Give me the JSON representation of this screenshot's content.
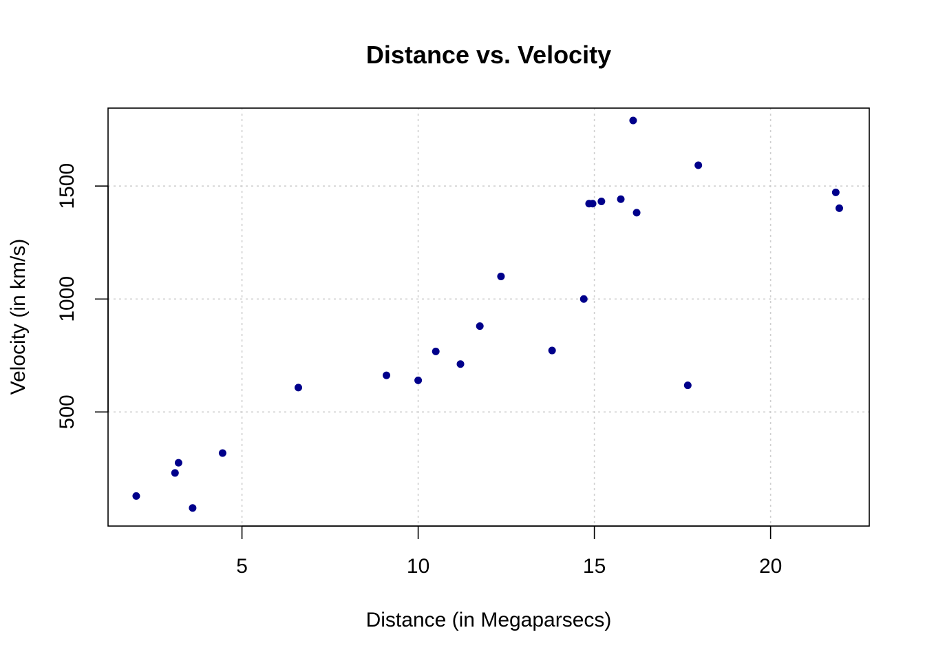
{
  "chart_data": {
    "type": "scatter",
    "title": "Distance vs. Velocity",
    "xlabel": "Distance (in Megaparsecs)",
    "ylabel": "Velocity (in km/s)",
    "xlim": [
      1.2,
      22.8
    ],
    "ylim": [
      -5,
      1845
    ],
    "x_ticks": [
      5,
      10,
      15,
      20
    ],
    "y_ticks": [
      500,
      1000,
      1500
    ],
    "grid": true,
    "point_color": "#00008B",
    "grid_color": "#cfcfcf",
    "series": [
      {
        "x": [
          2.0,
          3.1,
          3.2,
          3.6,
          4.45,
          6.6,
          9.1,
          10.0,
          10.5,
          11.2,
          11.75,
          12.35,
          13.8,
          14.7,
          14.85,
          14.95,
          15.2,
          15.75,
          16.1,
          16.2,
          17.65,
          17.95,
          21.85,
          21.95
        ],
        "y": [
          128,
          230,
          275,
          75,
          318,
          608,
          662,
          640,
          768,
          712,
          880,
          1100,
          772,
          1000,
          1422,
          1422,
          1432,
          1442,
          1790,
          1382,
          618,
          1592,
          1472,
          1402
        ]
      }
    ]
  }
}
